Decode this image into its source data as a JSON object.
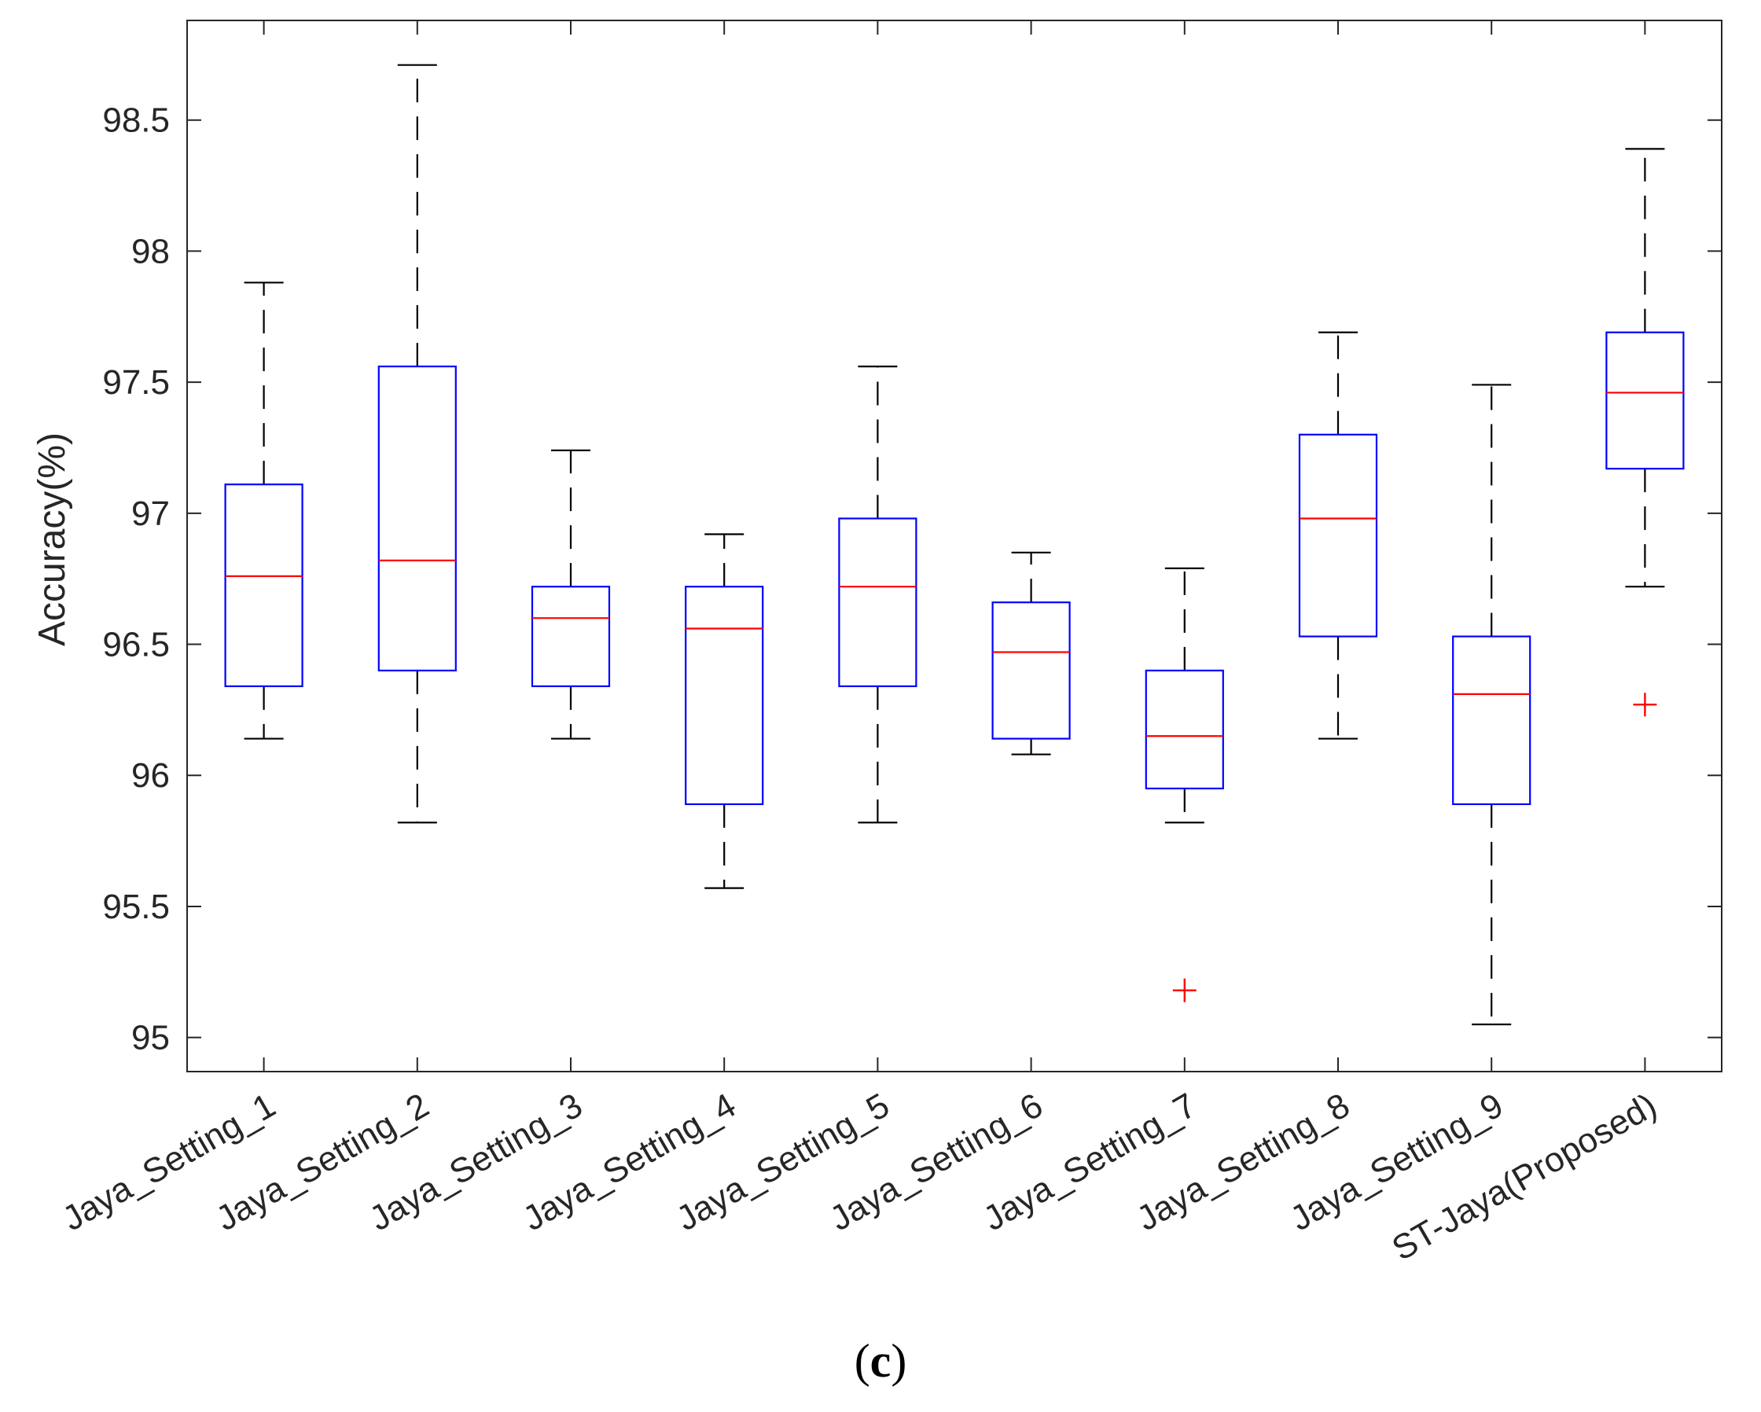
{
  "chart_data": {
    "type": "boxplot",
    "title": "",
    "xlabel": "",
    "ylabel": "Accuracy(%)",
    "ylim": [
      94.87,
      98.88
    ],
    "yticks": [
      95,
      95.5,
      96,
      96.5,
      97,
      97.5,
      98,
      98.5
    ],
    "ytick_labels": [
      "95",
      "95.5",
      "96",
      "96.5",
      "97",
      "97.5",
      "98",
      "98.5"
    ],
    "categories": [
      "Jaya_Setting_1",
      "Jaya_Setting_2",
      "Jaya_Setting_3",
      "Jaya_Setting_4",
      "Jaya_Setting_5",
      "Jaya_Setting_6",
      "Jaya_Setting_7",
      "Jaya_Setting_8",
      "Jaya_Setting_9",
      "ST-Jaya(Proposed)"
    ],
    "boxes": [
      {
        "whisker_low": 96.14,
        "q1": 96.34,
        "median": 96.76,
        "q3": 97.11,
        "whisker_high": 97.88,
        "outliers": []
      },
      {
        "whisker_low": 95.82,
        "q1": 96.4,
        "median": 96.82,
        "q3": 97.56,
        "whisker_high": 98.71,
        "outliers": []
      },
      {
        "whisker_low": 96.14,
        "q1": 96.34,
        "median": 96.6,
        "q3": 96.72,
        "whisker_high": 97.24,
        "outliers": []
      },
      {
        "whisker_low": 95.57,
        "q1": 95.89,
        "median": 96.56,
        "q3": 96.72,
        "whisker_high": 96.92,
        "outliers": []
      },
      {
        "whisker_low": 95.82,
        "q1": 96.34,
        "median": 96.72,
        "q3": 96.98,
        "whisker_high": 97.56,
        "outliers": []
      },
      {
        "whisker_low": 96.08,
        "q1": 96.14,
        "median": 96.47,
        "q3": 96.66,
        "whisker_high": 96.85,
        "outliers": []
      },
      {
        "whisker_low": 95.82,
        "q1": 95.95,
        "median": 96.15,
        "q3": 96.4,
        "whisker_high": 96.79,
        "outliers": [
          95.18
        ]
      },
      {
        "whisker_low": 96.14,
        "q1": 96.53,
        "median": 96.98,
        "q3": 97.3,
        "whisker_high": 97.69,
        "outliers": []
      },
      {
        "whisker_low": 95.05,
        "q1": 95.89,
        "median": 96.31,
        "q3": 96.53,
        "whisker_high": 97.49,
        "outliers": []
      },
      {
        "whisker_low": 96.72,
        "q1": 97.17,
        "median": 97.46,
        "q3": 97.69,
        "whisker_high": 98.39,
        "outliers": [
          96.27
        ]
      }
    ],
    "colors": {
      "box": "#0000ff",
      "median": "#ff0000",
      "whisker": "#000000",
      "outlier": "#ff0000",
      "axis": "#262626"
    }
  },
  "caption": {
    "open": "(",
    "letter": "c",
    "close": ")"
  }
}
